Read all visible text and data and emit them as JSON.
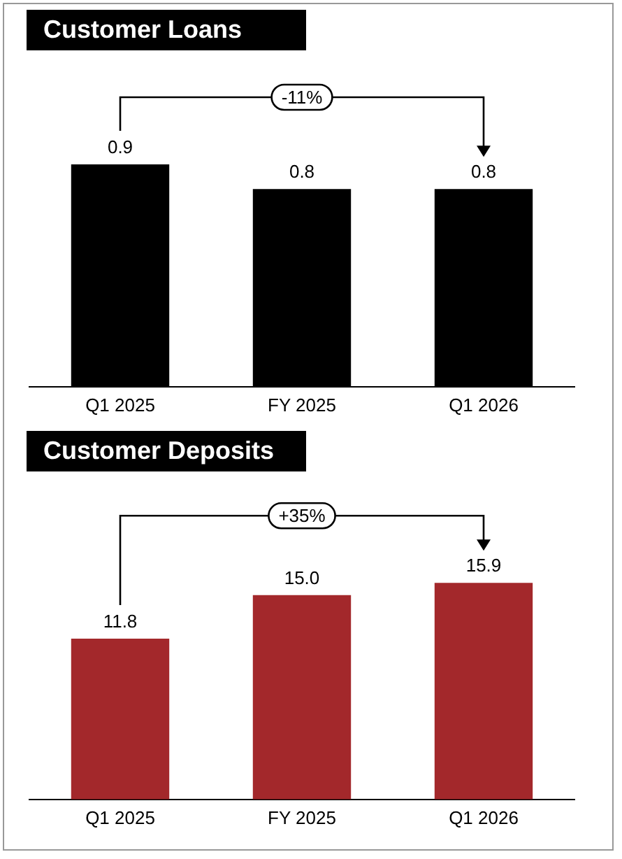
{
  "chart_data": [
    {
      "type": "bar",
      "title": "Customer Loans",
      "categories": [
        "Q1 2025",
        "FY 2025",
        "Q1 2026"
      ],
      "values": [
        0.9,
        0.8,
        0.8
      ],
      "color": "#000000",
      "data_labels": true,
      "annotations": [
        "-11%"
      ]
    },
    {
      "type": "bar",
      "title": "Customer Deposits",
      "categories": [
        "Q1 2025",
        "FY 2025",
        "Q1 2026"
      ],
      "values": [
        11.8,
        15.0,
        15.9
      ],
      "value_labels": [
        "11.8",
        "15.0",
        "15.9"
      ],
      "color": "#a3282b",
      "annotations": [
        "+35%"
      ]
    }
  ]
}
